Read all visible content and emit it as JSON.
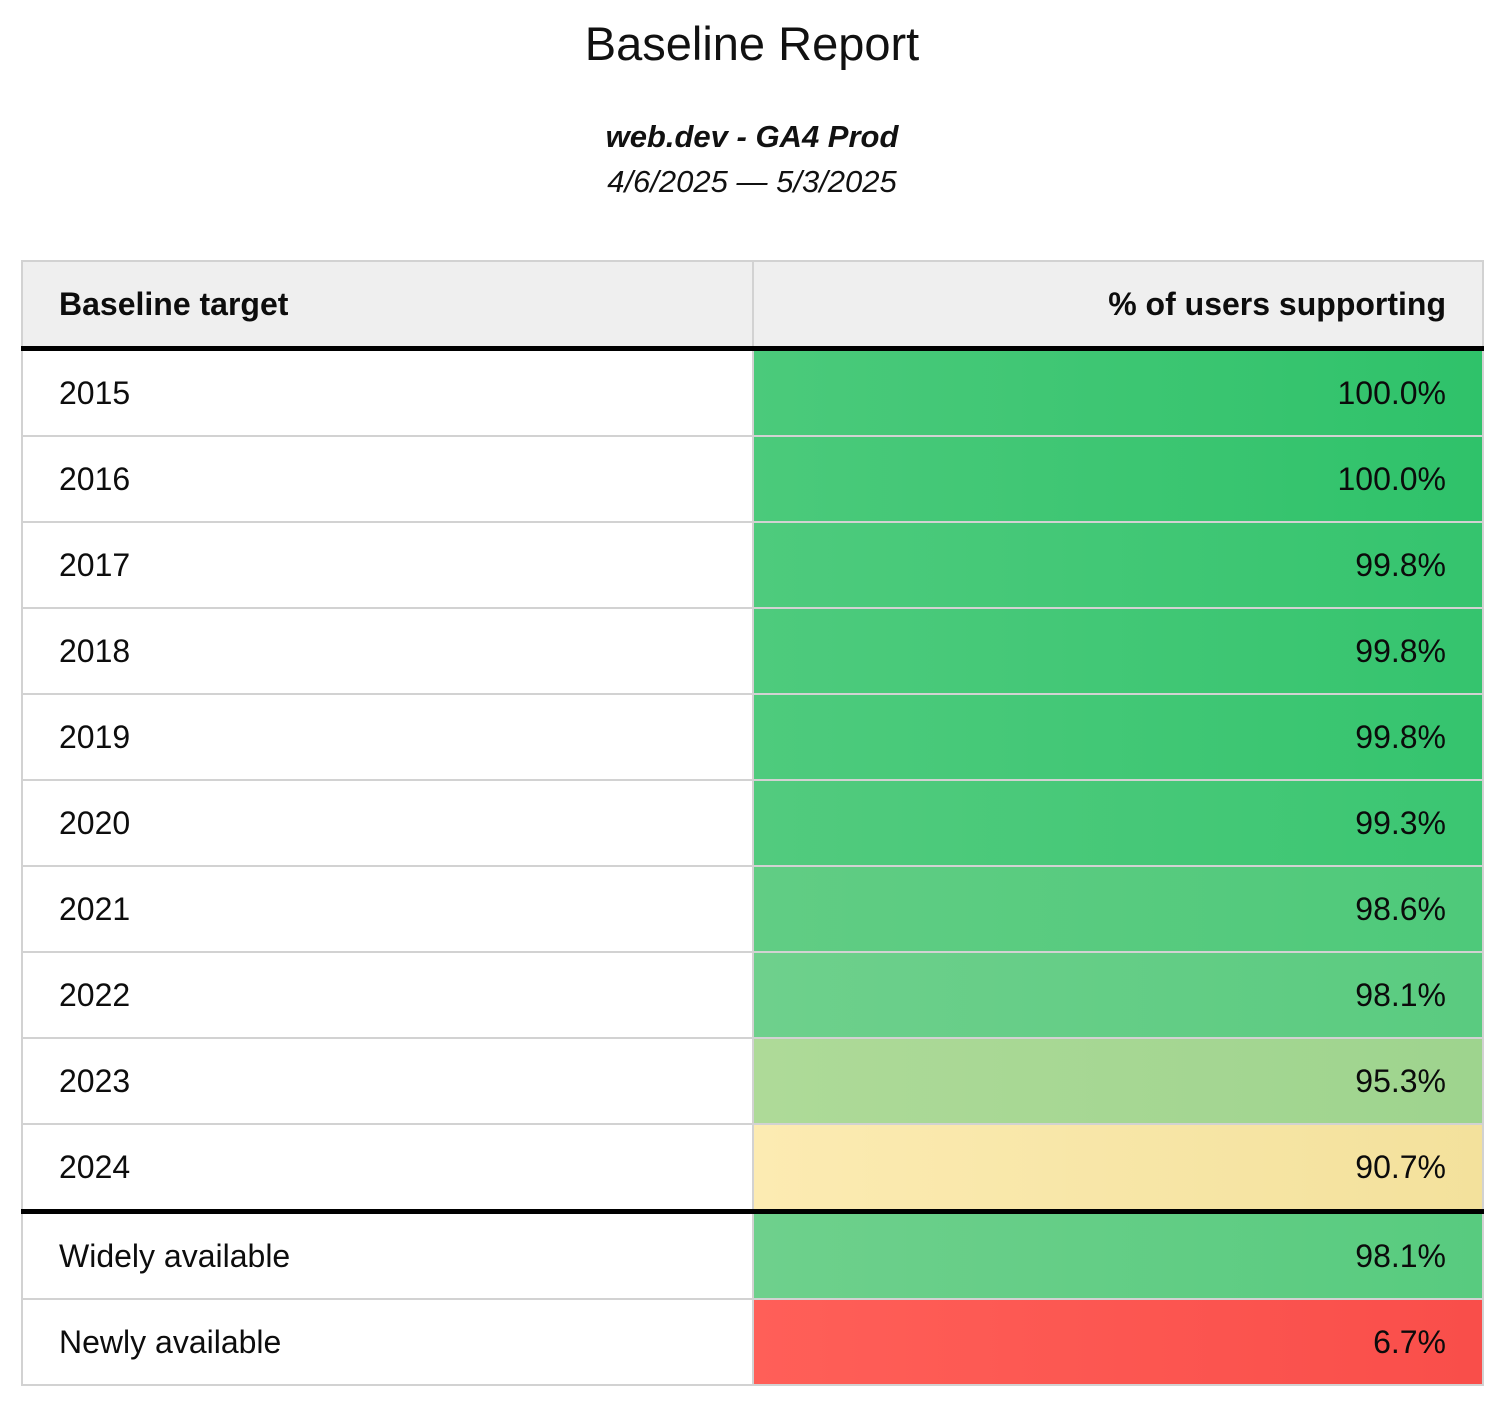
{
  "page": {
    "title": "Baseline Report",
    "subtitle": "web.dev - GA4 Prod",
    "date_range": "4/6/2025 — 5/3/2025"
  },
  "table": {
    "columns": [
      "Baseline target",
      "% of users supporting"
    ],
    "rows": [
      {
        "target": "2015",
        "value": "100.0%",
        "color_left": "#4bca7b",
        "color_right": "#2fc26a",
        "section_start": false
      },
      {
        "target": "2016",
        "value": "100.0%",
        "color_left": "#4bca7b",
        "color_right": "#2fc26a",
        "section_start": false
      },
      {
        "target": "2017",
        "value": "99.8%",
        "color_left": "#4ecb7d",
        "color_right": "#35c46e",
        "section_start": false
      },
      {
        "target": "2018",
        "value": "99.8%",
        "color_left": "#4ecb7d",
        "color_right": "#35c46e",
        "section_start": false
      },
      {
        "target": "2019",
        "value": "99.8%",
        "color_left": "#4ecb7d",
        "color_right": "#35c46e",
        "section_start": false
      },
      {
        "target": "2020",
        "value": "99.3%",
        "color_left": "#52cb7e",
        "color_right": "#3bc672",
        "section_start": false
      },
      {
        "target": "2021",
        "value": "98.6%",
        "color_left": "#61cd84",
        "color_right": "#4ec97a",
        "section_start": false
      },
      {
        "target": "2022",
        "value": "98.1%",
        "color_left": "#6ed08c",
        "color_right": "#5acb80",
        "section_start": false
      },
      {
        "target": "2023",
        "value": "95.3%",
        "color_left": "#aeda98",
        "color_right": "#9ed48e",
        "section_start": false
      },
      {
        "target": "2024",
        "value": "90.7%",
        "color_left": "#fcebb2",
        "color_right": "#f3e19c",
        "section_start": false
      },
      {
        "target": "Widely available",
        "value": "98.1%",
        "color_left": "#6ed08c",
        "color_right": "#58cb7f",
        "section_start": true
      },
      {
        "target": "Newly available",
        "value": "6.7%",
        "color_left": "#ff5f58",
        "color_right": "#f94e4a",
        "section_start": false
      }
    ]
  },
  "colors": {
    "header_bg": "#efefef",
    "grid_border": "#d2d2d2",
    "outer_border": "#c7c7c7",
    "thick_border": "#000000",
    "scale_green": "#3cc672",
    "scale_yellow": "#f7e5a6",
    "scale_red": "#fc5752"
  }
}
